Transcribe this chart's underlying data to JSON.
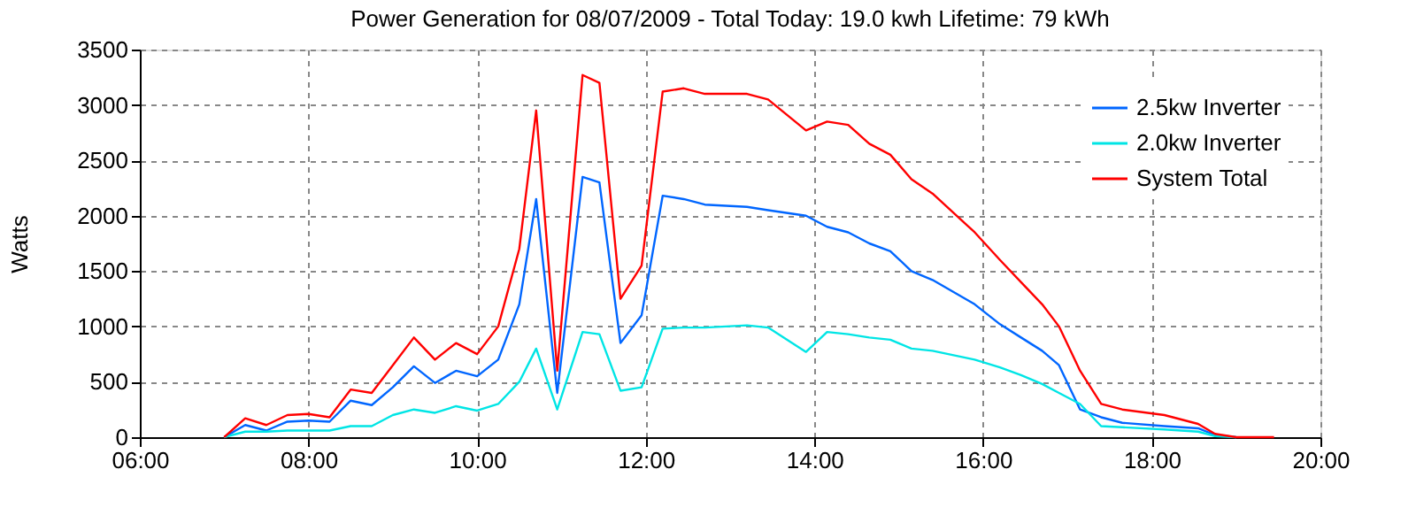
{
  "chart_data": {
    "type": "line",
    "title": "Power Generation for 08/07/2009 - Total Today: 19.0 kwh   Lifetime: 79 kWh",
    "ylabel": "Watts",
    "xlim": [
      6,
      20
    ],
    "xticks": [
      {
        "value": 6,
        "label": "06:00"
      },
      {
        "value": 8,
        "label": "08:00"
      },
      {
        "value": 10,
        "label": "10:00"
      },
      {
        "value": 12,
        "label": "12:00"
      },
      {
        "value": 14,
        "label": "14:00"
      },
      {
        "value": 16,
        "label": "16:00"
      },
      {
        "value": 18,
        "label": "18:00"
      },
      {
        "value": 20,
        "label": "20:00"
      }
    ],
    "ylim": [
      0,
      3500
    ],
    "yticks": [
      0,
      500,
      1000,
      1500,
      2000,
      2500,
      3000,
      3500
    ],
    "grid": true,
    "legend": "top right",
    "line_style": "solid",
    "series": [
      {
        "name": "2.5kw Inverter",
        "color": "#0066ff",
        "x": [
          7.0,
          7.25,
          7.5,
          7.75,
          8.0,
          8.25,
          8.5,
          8.75,
          9.0,
          9.25,
          9.5,
          9.75,
          10.0,
          10.25,
          10.5,
          10.7,
          10.95,
          11.25,
          11.45,
          11.7,
          11.95,
          12.2,
          12.45,
          12.7,
          13.2,
          13.45,
          13.9,
          14.15,
          14.4,
          14.65,
          14.9,
          15.15,
          15.4,
          15.9,
          16.2,
          16.45,
          16.7,
          16.9,
          17.15,
          17.4,
          17.65,
          18.15,
          18.55,
          18.75,
          19.0
        ],
        "values": [
          0,
          110,
          60,
          140,
          150,
          140,
          330,
          290,
          450,
          640,
          490,
          600,
          550,
          700,
          1200,
          2150,
          400,
          2350,
          2300,
          850,
          1100,
          2180,
          2150,
          2100,
          2080,
          2050,
          2000,
          1900,
          1850,
          1750,
          1680,
          1500,
          1420,
          1200,
          1020,
          900,
          780,
          650,
          250,
          180,
          130,
          100,
          80,
          20,
          0
        ]
      },
      {
        "name": "2.0kw Inverter",
        "color": "#00e5e5",
        "x": [
          7.0,
          7.25,
          7.5,
          7.75,
          8.0,
          8.25,
          8.5,
          8.75,
          9.0,
          9.25,
          9.5,
          9.75,
          10.0,
          10.25,
          10.5,
          10.7,
          10.95,
          11.25,
          11.45,
          11.7,
          11.95,
          12.2,
          12.45,
          12.7,
          13.2,
          13.45,
          13.9,
          14.15,
          14.4,
          14.65,
          14.9,
          15.15,
          15.4,
          15.9,
          16.2,
          16.45,
          16.7,
          16.9,
          17.15,
          17.4,
          17.65,
          18.15,
          18.55,
          18.75,
          19.0
        ],
        "values": [
          0,
          50,
          50,
          60,
          60,
          60,
          100,
          100,
          200,
          250,
          220,
          280,
          240,
          300,
          500,
          800,
          250,
          950,
          930,
          420,
          450,
          980,
          990,
          990,
          1010,
          990,
          770,
          950,
          930,
          900,
          880,
          800,
          780,
          700,
          630,
          560,
          480,
          400,
          300,
          100,
          90,
          70,
          50,
          10,
          0
        ]
      },
      {
        "name": "System Total",
        "color": "#ff0000",
        "x": [
          7.0,
          7.25,
          7.5,
          7.75,
          8.0,
          8.25,
          8.5,
          8.75,
          9.0,
          9.25,
          9.5,
          9.75,
          10.0,
          10.25,
          10.5,
          10.7,
          10.95,
          11.25,
          11.45,
          11.7,
          11.95,
          12.2,
          12.45,
          12.7,
          13.2,
          13.45,
          13.9,
          14.15,
          14.4,
          14.65,
          14.9,
          15.15,
          15.4,
          15.9,
          16.2,
          16.45,
          16.7,
          16.9,
          17.15,
          17.4,
          17.65,
          18.15,
          18.55,
          18.75,
          19.0,
          19.45
        ],
        "values": [
          0,
          170,
          110,
          200,
          210,
          180,
          430,
          400,
          650,
          900,
          700,
          850,
          750,
          1000,
          1700,
          2950,
          600,
          3270,
          3200,
          1250,
          1550,
          3120,
          3150,
          3100,
          3100,
          3050,
          2770,
          2850,
          2820,
          2650,
          2550,
          2330,
          2200,
          1850,
          1600,
          1400,
          1200,
          1000,
          600,
          300,
          250,
          200,
          120,
          30,
          0,
          0
        ]
      }
    ]
  }
}
